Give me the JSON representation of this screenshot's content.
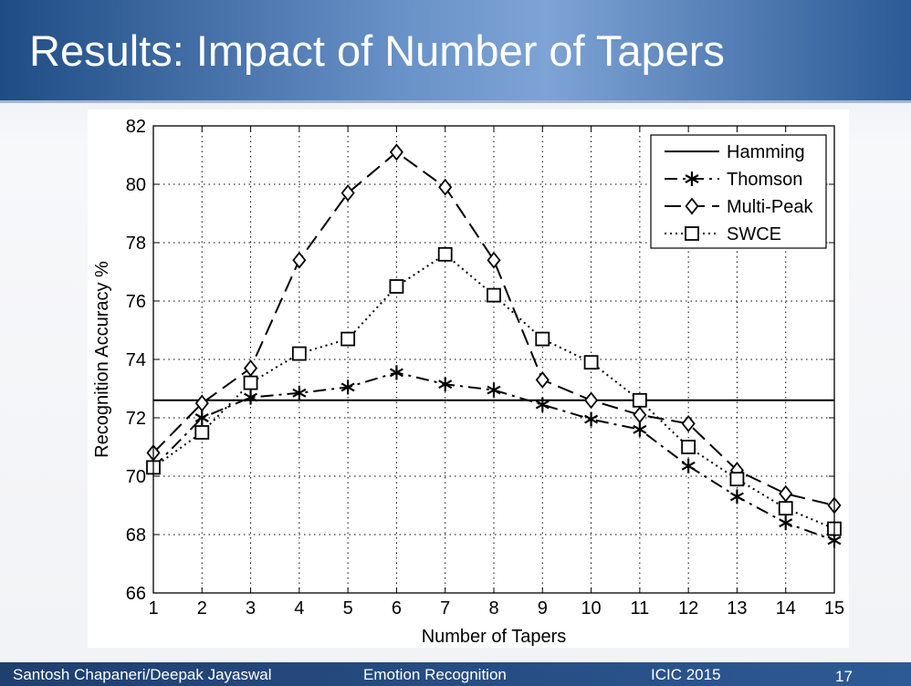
{
  "slide": {
    "title": "Results: Impact of Number of Tapers",
    "footer_authors": "Santosh Chapaneri/Deepak Jayaswal",
    "footer_topic": "Emotion Recognition",
    "footer_conference": "ICIC 2015",
    "page_number": "17"
  },
  "chart_data": {
    "type": "line",
    "xlabel": "Number of Tapers",
    "ylabel": "Recognition Accuracy %",
    "xlim": [
      1,
      15
    ],
    "ylim": [
      66,
      82
    ],
    "xticks": [
      1,
      2,
      3,
      4,
      5,
      6,
      7,
      8,
      9,
      10,
      11,
      12,
      13,
      14,
      15
    ],
    "yticks": [
      66,
      68,
      70,
      72,
      74,
      76,
      78,
      80,
      82
    ],
    "grid": true,
    "legend_position": "top-right",
    "x": [
      1,
      2,
      3,
      4,
      5,
      6,
      7,
      8,
      9,
      10,
      11,
      12,
      13,
      14,
      15
    ],
    "series": [
      {
        "name": "Hamming",
        "style": "solid",
        "marker": "none",
        "values": [
          72.6,
          72.6,
          72.6,
          72.6,
          72.6,
          72.6,
          72.6,
          72.6,
          72.6,
          72.6,
          72.6,
          72.6,
          72.6,
          72.6,
          72.6
        ]
      },
      {
        "name": "Thomson",
        "style": "dashdot",
        "marker": "star",
        "values": [
          70.3,
          72.0,
          72.7,
          72.85,
          73.05,
          73.55,
          73.15,
          72.95,
          72.45,
          71.95,
          71.6,
          70.35,
          69.3,
          68.4,
          67.8
        ]
      },
      {
        "name": "Multi-Peak",
        "style": "dashed",
        "marker": "diamond",
        "values": [
          70.8,
          72.5,
          73.7,
          77.4,
          79.7,
          81.1,
          79.9,
          77.4,
          73.3,
          72.6,
          72.1,
          71.8,
          70.2,
          69.4,
          69.0
        ]
      },
      {
        "name": "SWCE",
        "style": "dotted",
        "marker": "square",
        "values": [
          70.3,
          71.5,
          73.2,
          74.2,
          74.7,
          76.5,
          77.6,
          76.2,
          74.7,
          73.9,
          72.6,
          71.0,
          69.9,
          68.9,
          68.2
        ]
      }
    ]
  }
}
